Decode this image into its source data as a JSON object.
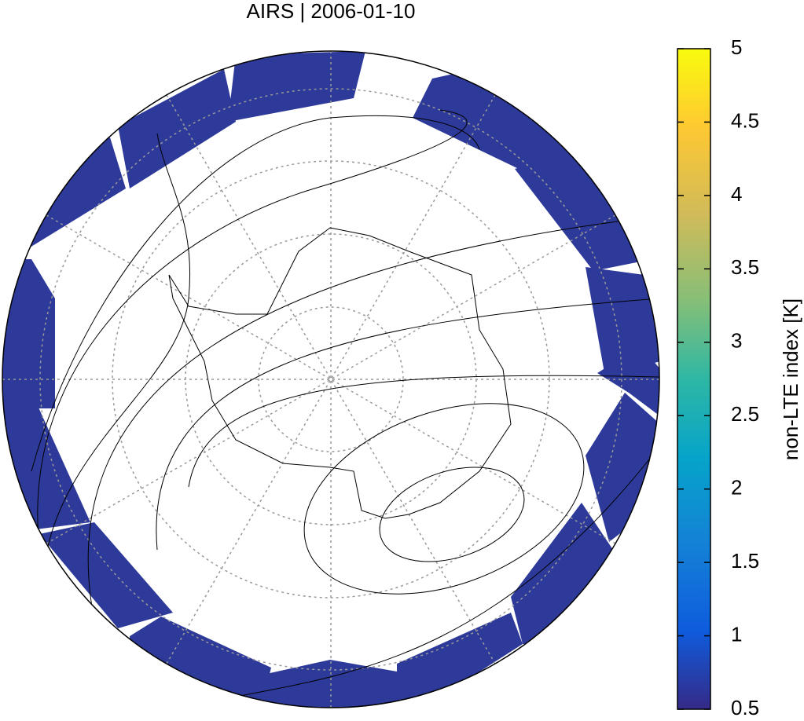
{
  "title": "AIRS | 2006-01-10",
  "colorbar": {
    "label": "non-LTE index [K]",
    "range": [
      0.5,
      5
    ],
    "ticks": [
      0.5,
      1,
      1.5,
      2,
      2.5,
      3,
      3.5,
      4,
      4.5,
      5
    ]
  }
}
